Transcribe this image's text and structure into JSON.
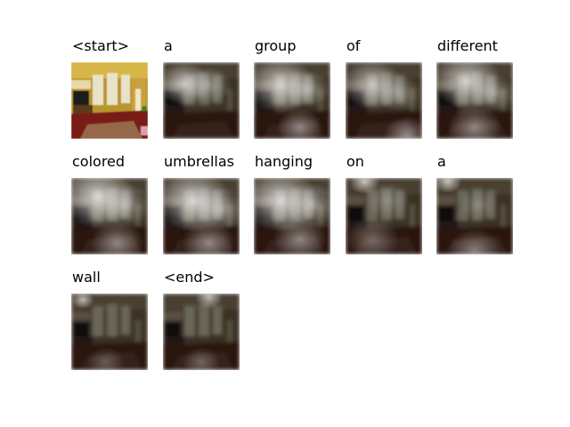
{
  "words": [
    "<start>",
    "a",
    "group",
    "of",
    "different",
    "colored",
    "umbrellas",
    "hanging",
    "on",
    "a",
    "wall",
    "<end>"
  ],
  "scene_image": "living-room-photo",
  "attention_overlay": "blurred-attention-map"
}
